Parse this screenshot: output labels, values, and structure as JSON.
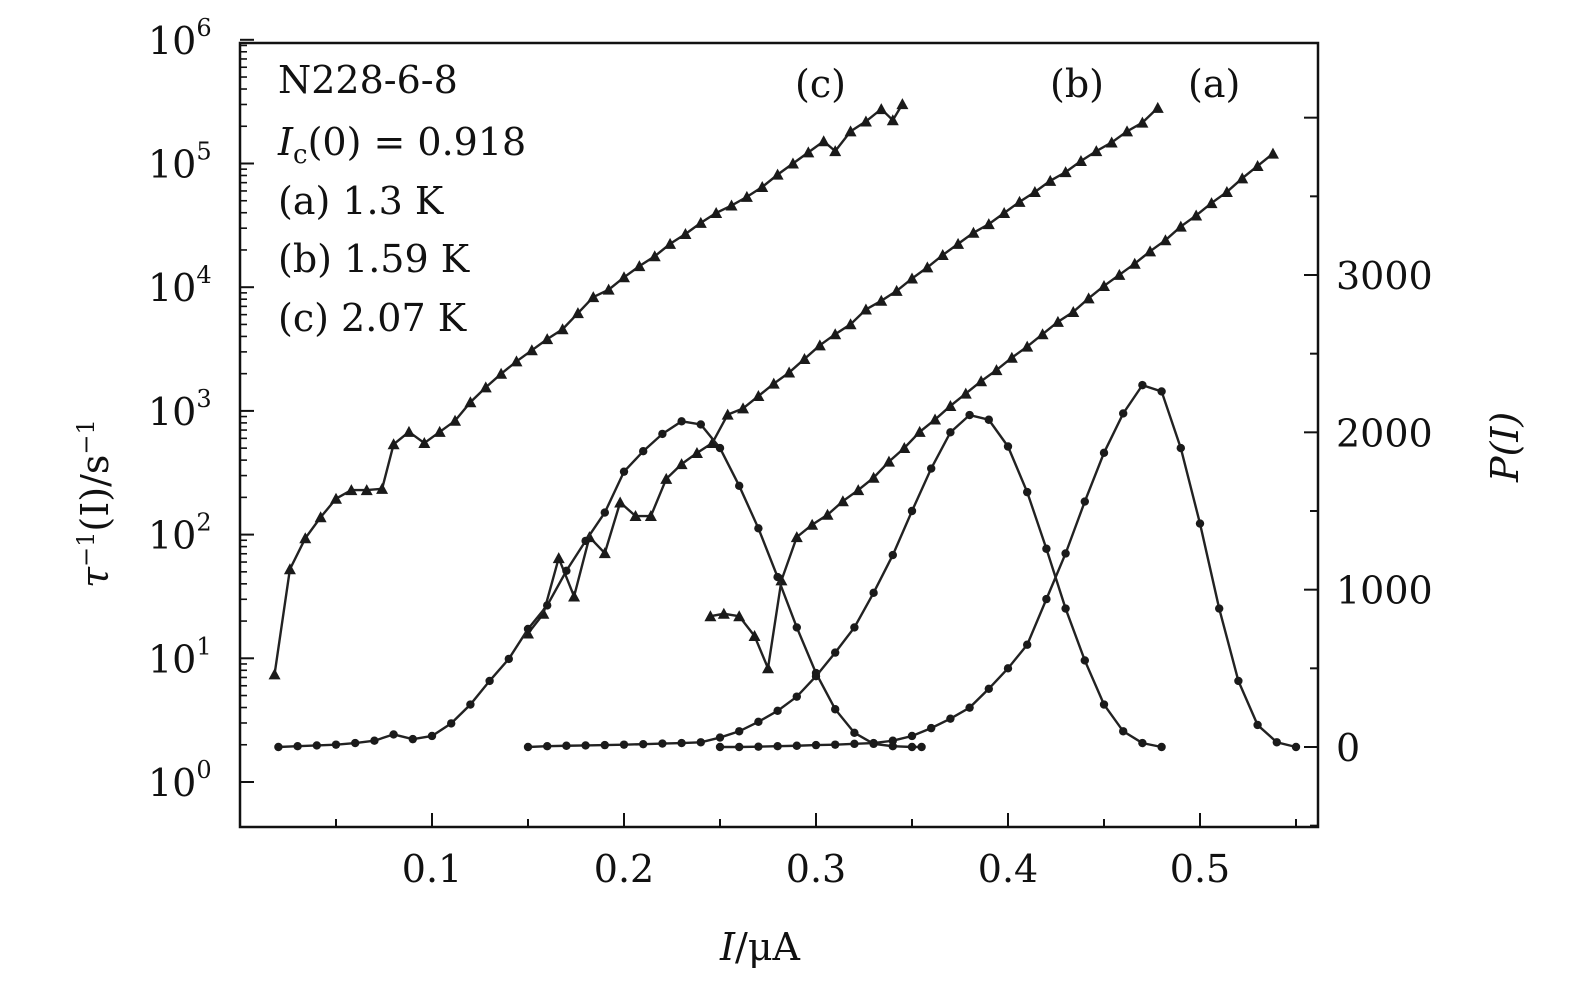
{
  "chart_data": {
    "type": "line",
    "sample_label": "N228-6-8",
    "annotation_ic_prefix": "I",
    "annotation_ic_sub": "c",
    "annotation_ic_value": "(0) = 0.918",
    "legend": [
      {
        "key": "(a)",
        "label": "(a) 1.3 K",
        "temperature": "1.3 K"
      },
      {
        "key": "(b)",
        "label": "(b) 1.59 K",
        "temperature": "1.59 K"
      },
      {
        "key": "(c)",
        "label": "(c) 2.07 K",
        "temperature": "2.07 K"
      }
    ],
    "curve_labels": [
      "(c)",
      "(b)",
      "(a)"
    ],
    "xlabel_var": "I",
    "xlabel_unit": "/μA",
    "ylabel_left_text": "τ",
    "ylabel_left_sup": "−1",
    "ylabel_left_rest": "(I)/s",
    "ylabel_left_sup2": "−1",
    "ylabel_right_text": "P(I)",
    "xlim": [
      0.0,
      0.56
    ],
    "ylim_left_log10": [
      -0.4,
      6.0
    ],
    "ylim_right": [
      -500,
      4500
    ],
    "x_ticks": [
      0.1,
      0.2,
      0.3,
      0.4,
      0.5
    ],
    "x_tick_labels": [
      "0.1",
      "0.2",
      "0.3",
      "0.4",
      "0.5"
    ],
    "y_left_ticks": [
      {
        "exp": 0,
        "base": "10",
        "sup": "0"
      },
      {
        "exp": 1,
        "base": "10",
        "sup": "1"
      },
      {
        "exp": 2,
        "base": "10",
        "sup": "2"
      },
      {
        "exp": 3,
        "base": "10",
        "sup": "3"
      },
      {
        "exp": 4,
        "base": "10",
        "sup": "4"
      },
      {
        "exp": 5,
        "base": "10",
        "sup": "5"
      },
      {
        "exp": 6,
        "base": "10",
        "sup": "6"
      }
    ],
    "y_right_ticks": [
      0,
      1000,
      2000,
      3000
    ],
    "y_right_tick_labels": [
      "0",
      "1000",
      "2000",
      "3000"
    ],
    "escape_rate_series": [
      {
        "name": "(c) 2.07 K",
        "x": [
          0.018,
          0.026,
          0.034,
          0.042,
          0.05,
          0.058,
          0.066,
          0.074,
          0.08,
          0.088,
          0.096,
          0.104,
          0.112,
          0.12,
          0.128,
          0.136,
          0.144,
          0.152,
          0.16,
          0.168,
          0.176,
          0.184,
          0.192,
          0.2,
          0.208,
          0.216,
          0.224,
          0.232,
          0.24,
          0.248,
          0.256,
          0.264,
          0.272,
          0.28,
          0.288,
          0.296,
          0.304,
          0.31,
          0.318,
          0.326,
          0.334,
          0.34,
          0.345
        ],
        "log10_y": [
          0.87,
          1.72,
          1.97,
          2.14,
          2.29,
          2.36,
          2.36,
          2.37,
          2.73,
          2.83,
          2.74,
          2.83,
          2.92,
          3.07,
          3.19,
          3.3,
          3.4,
          3.49,
          3.58,
          3.66,
          3.79,
          3.92,
          3.98,
          4.08,
          4.17,
          4.25,
          4.35,
          4.43,
          4.52,
          4.6,
          4.66,
          4.73,
          4.81,
          4.91,
          5.0,
          5.09,
          5.18,
          5.1,
          5.26,
          5.34,
          5.44,
          5.35,
          5.48
        ]
      },
      {
        "name": "(b) 1.59 K",
        "x": [
          0.15,
          0.158,
          0.166,
          0.174,
          0.182,
          0.19,
          0.198,
          0.206,
          0.214,
          0.222,
          0.23,
          0.238,
          0.246,
          0.254,
          0.262,
          0.27,
          0.278,
          0.286,
          0.294,
          0.302,
          0.31,
          0.318,
          0.326,
          0.334,
          0.342,
          0.35,
          0.358,
          0.366,
          0.374,
          0.382,
          0.39,
          0.398,
          0.406,
          0.414,
          0.422,
          0.43,
          0.438,
          0.446,
          0.454,
          0.462,
          0.47,
          0.478
        ],
        "log10_y": [
          1.2,
          1.36,
          1.81,
          1.5,
          1.98,
          1.85,
          2.26,
          2.15,
          2.15,
          2.45,
          2.57,
          2.66,
          2.74,
          2.97,
          3.02,
          3.12,
          3.22,
          3.31,
          3.42,
          3.53,
          3.62,
          3.7,
          3.82,
          3.89,
          3.97,
          4.07,
          4.16,
          4.26,
          4.35,
          4.44,
          4.51,
          4.6,
          4.69,
          4.77,
          4.86,
          4.93,
          5.02,
          5.1,
          5.17,
          5.26,
          5.33,
          5.45
        ]
      },
      {
        "name": "(a) 1.3 K",
        "x": [
          0.245,
          0.252,
          0.26,
          0.268,
          0.275,
          0.282,
          0.29,
          0.298,
          0.306,
          0.314,
          0.322,
          0.33,
          0.338,
          0.346,
          0.354,
          0.362,
          0.37,
          0.378,
          0.386,
          0.394,
          0.402,
          0.41,
          0.418,
          0.426,
          0.434,
          0.442,
          0.45,
          0.458,
          0.466,
          0.474,
          0.482,
          0.49,
          0.498,
          0.506,
          0.514,
          0.522,
          0.53,
          0.538
        ],
        "log10_y": [
          1.34,
          1.36,
          1.34,
          1.18,
          0.92,
          1.63,
          1.98,
          2.08,
          2.16,
          2.27,
          2.36,
          2.46,
          2.59,
          2.7,
          2.83,
          2.93,
          3.04,
          3.14,
          3.24,
          3.33,
          3.43,
          3.52,
          3.62,
          3.72,
          3.8,
          3.91,
          4.01,
          4.1,
          4.19,
          4.29,
          4.38,
          4.49,
          4.58,
          4.68,
          4.77,
          4.88,
          4.98,
          5.08
        ]
      }
    ],
    "distribution_series": [
      {
        "name": "P(I) (c) 2.07 K",
        "x": [
          0.02,
          0.03,
          0.04,
          0.05,
          0.06,
          0.07,
          0.08,
          0.09,
          0.1,
          0.11,
          0.12,
          0.13,
          0.14,
          0.15,
          0.16,
          0.17,
          0.18,
          0.19,
          0.2,
          0.21,
          0.22,
          0.23,
          0.24,
          0.25,
          0.26,
          0.27,
          0.28,
          0.29,
          0.3,
          0.31,
          0.32,
          0.33,
          0.34,
          0.35,
          0.355
        ],
        "y": [
          0,
          5,
          10,
          15,
          25,
          40,
          80,
          50,
          70,
          150,
          270,
          420,
          560,
          750,
          900,
          1120,
          1310,
          1490,
          1750,
          1880,
          1990,
          2070,
          2050,
          1900,
          1660,
          1390,
          1080,
          760,
          470,
          240,
          90,
          20,
          5,
          0,
          0
        ]
      },
      {
        "name": "P(I) (b) 1.59 K",
        "x": [
          0.15,
          0.16,
          0.17,
          0.18,
          0.19,
          0.2,
          0.21,
          0.22,
          0.23,
          0.24,
          0.25,
          0.26,
          0.27,
          0.28,
          0.29,
          0.3,
          0.31,
          0.32,
          0.33,
          0.34,
          0.35,
          0.36,
          0.37,
          0.38,
          0.39,
          0.4,
          0.41,
          0.42,
          0.43,
          0.44,
          0.45,
          0.46,
          0.47,
          0.48
        ],
        "y": [
          0,
          5,
          8,
          10,
          12,
          15,
          18,
          22,
          25,
          30,
          60,
          100,
          160,
          230,
          320,
          450,
          600,
          760,
          980,
          1220,
          1500,
          1770,
          2000,
          2110,
          2080,
          1910,
          1620,
          1260,
          880,
          550,
          270,
          100,
          25,
          0
        ]
      },
      {
        "name": "P(I) (a) 1.3 K",
        "x": [
          0.25,
          0.26,
          0.27,
          0.28,
          0.29,
          0.3,
          0.31,
          0.32,
          0.33,
          0.34,
          0.35,
          0.36,
          0.37,
          0.38,
          0.39,
          0.4,
          0.41,
          0.42,
          0.43,
          0.44,
          0.45,
          0.46,
          0.47,
          0.48,
          0.49,
          0.5,
          0.51,
          0.52,
          0.53,
          0.54,
          0.55
        ],
        "y": [
          0,
          0,
          2,
          5,
          8,
          12,
          15,
          20,
          25,
          40,
          70,
          120,
          180,
          250,
          370,
          500,
          650,
          940,
          1230,
          1560,
          1870,
          2120,
          2300,
          2260,
          1900,
          1420,
          880,
          420,
          140,
          30,
          0
        ]
      }
    ]
  }
}
